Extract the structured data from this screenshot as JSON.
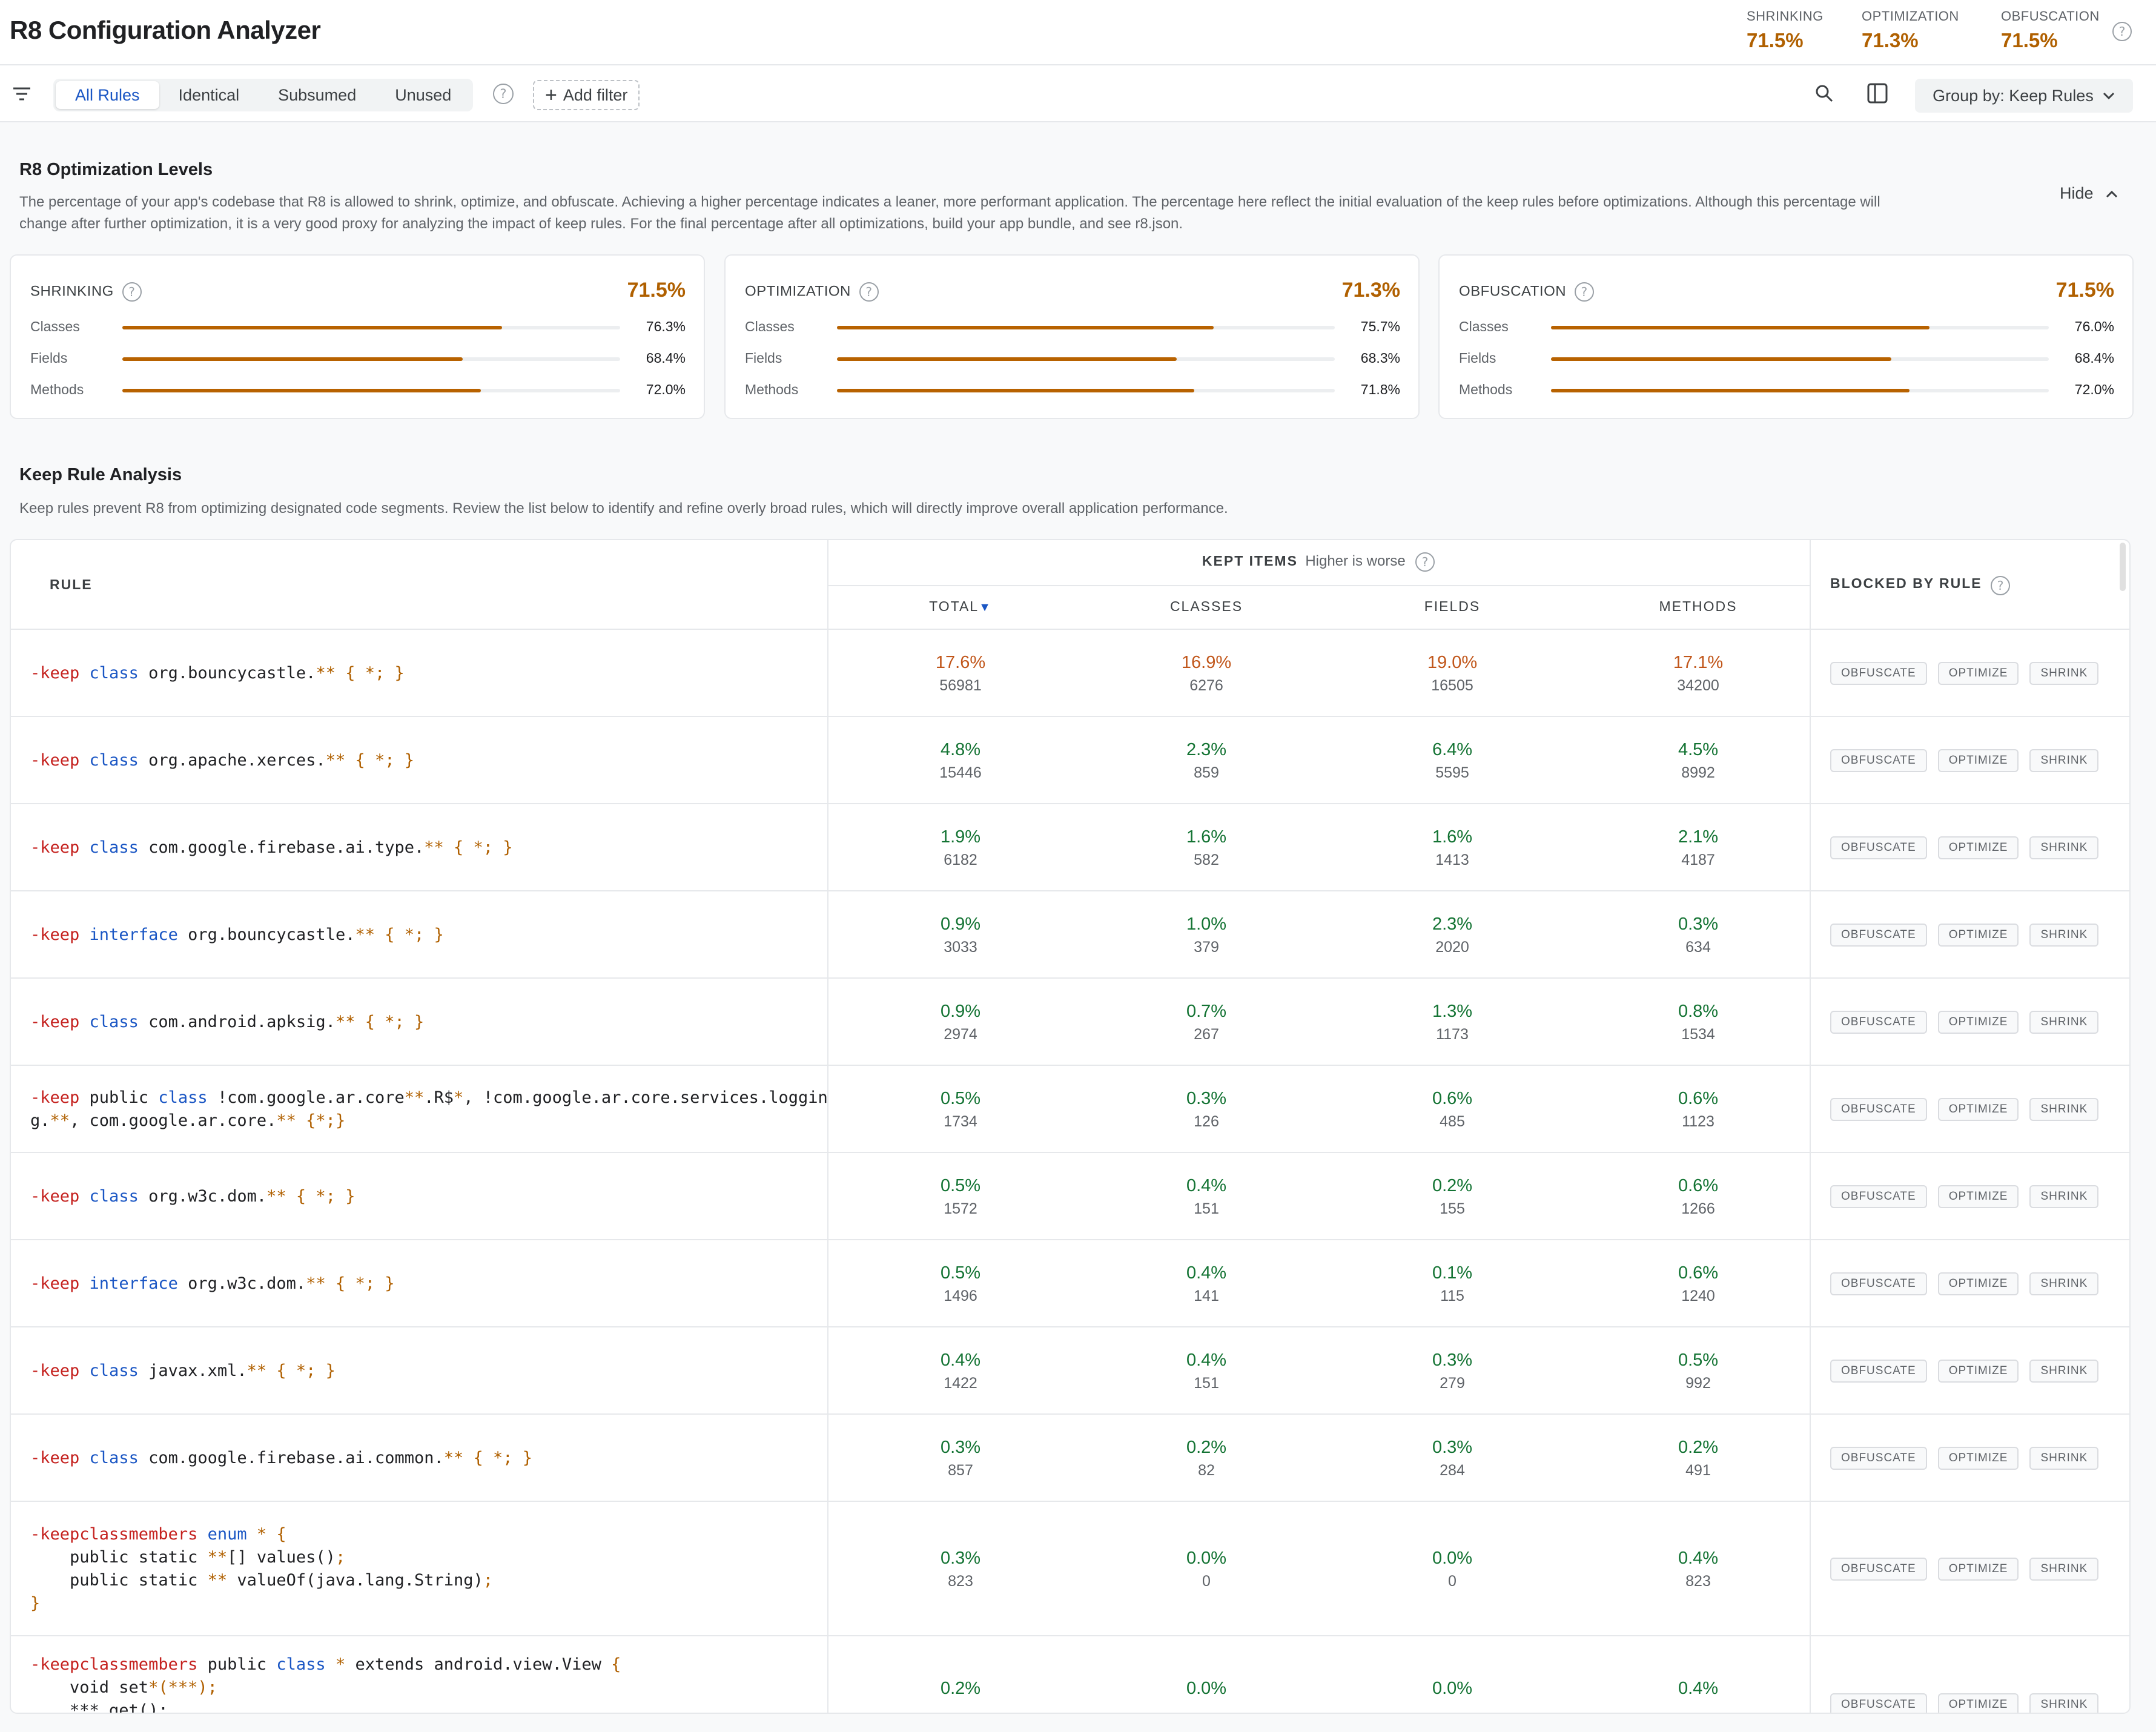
{
  "header": {
    "title": "R8 Configuration Analyzer",
    "metrics": [
      {
        "label": "SHRINKING",
        "value": "71.5%"
      },
      {
        "label": "OPTIMIZATION",
        "value": "71.3%"
      },
      {
        "label": "OBFUSCATION",
        "value": "71.5%"
      }
    ]
  },
  "toolbar": {
    "tabs": [
      "All Rules",
      "Identical",
      "Subsumed",
      "Unused"
    ],
    "active_tab": "All Rules",
    "add_filter_label": "Add filter",
    "group_by_label": "Group by: Keep Rules"
  },
  "levels": {
    "title": "R8 Optimization Levels",
    "description_line1": "The percentage of your app's codebase that R8 is allowed to shrink, optimize, and obfuscate. Achieving a higher percentage indicates a leaner, more performant application. The percentage here reflect the initial evaluation of the keep rules before optimizations. Although this percentage will",
    "description_line2": "change after further optimization, it is a very good proxy for analyzing the impact of keep rules. For the final percentage after all optimizations, build your app bundle, and see r8.json.",
    "hide_label": "Hide",
    "cards": [
      {
        "title": "SHRINKING",
        "value": "71.5%",
        "rows": [
          {
            "label": "Classes",
            "value": "76.3%",
            "level": 0.763
          },
          {
            "label": "Fields",
            "value": "68.4%",
            "level": 0.684
          },
          {
            "label": "Methods",
            "value": "72.0%",
            "level": 0.72
          }
        ]
      },
      {
        "title": "OPTIMIZATION",
        "value": "71.3%",
        "rows": [
          {
            "label": "Classes",
            "value": "75.7%",
            "level": 0.757
          },
          {
            "label": "Fields",
            "value": "68.3%",
            "level": 0.683
          },
          {
            "label": "Methods",
            "value": "71.8%",
            "level": 0.718
          }
        ]
      },
      {
        "title": "OBFUSCATION",
        "value": "71.5%",
        "rows": [
          {
            "label": "Classes",
            "value": "76.0%",
            "level": 0.76
          },
          {
            "label": "Fields",
            "value": "68.4%",
            "level": 0.684
          },
          {
            "label": "Methods",
            "value": "72.0%",
            "level": 0.72
          }
        ]
      }
    ]
  },
  "analysis": {
    "title": "Keep Rule Analysis",
    "description": "Keep rules prevent R8 from optimizing designated code segments. Review the list below to identify and refine overly broad rules, which will directly improve overall application performance.",
    "headers": {
      "rule": "RULE",
      "kept_items": "KEPT ITEMS",
      "kept_hint": "Higher is worse",
      "total": "TOTAL",
      "sort_indicator": "▼",
      "classes": "CLASSES",
      "fields": "FIELDS",
      "methods": "METHODS",
      "blocked": "BLOCKED BY RULE"
    },
    "chips": [
      "OBFUSCATE",
      "OPTIMIZE",
      "SHRINK"
    ],
    "rows": [
      {
        "rule_lines": [
          [
            [
              "-keep",
              "kw"
            ],
            [
              " ",
              ""
            ],
            [
              "class",
              "ty"
            ],
            [
              " org.bouncycastle.",
              ""
            ],
            [
              "** { *; }",
              "or"
            ]
          ]
        ],
        "total": {
          "pct": "17.6%",
          "count": "56981"
        },
        "classes": {
          "pct": "16.9%",
          "count": "6276"
        },
        "fields": {
          "pct": "19.0%",
          "count": "16505"
        },
        "methods": {
          "pct": "17.1%",
          "count": "34200"
        },
        "severity": "high"
      },
      {
        "rule_lines": [
          [
            [
              "-keep",
              "kw"
            ],
            [
              " ",
              ""
            ],
            [
              "class",
              "ty"
            ],
            [
              " org.apache.xerces.",
              ""
            ],
            [
              "** { *; }",
              "or"
            ]
          ]
        ],
        "total": {
          "pct": "4.8%",
          "count": "15446"
        },
        "classes": {
          "pct": "2.3%",
          "count": "859"
        },
        "fields": {
          "pct": "6.4%",
          "count": "5595"
        },
        "methods": {
          "pct": "4.5%",
          "count": "8992"
        },
        "severity": "low"
      },
      {
        "rule_lines": [
          [
            [
              "-keep",
              "kw"
            ],
            [
              " ",
              ""
            ],
            [
              "class",
              "ty"
            ],
            [
              " com.google.firebase.ai.type.",
              ""
            ],
            [
              "** { *; }",
              "or"
            ]
          ]
        ],
        "total": {
          "pct": "1.9%",
          "count": "6182"
        },
        "classes": {
          "pct": "1.6%",
          "count": "582"
        },
        "fields": {
          "pct": "1.6%",
          "count": "1413"
        },
        "methods": {
          "pct": "2.1%",
          "count": "4187"
        },
        "severity": "low"
      },
      {
        "rule_lines": [
          [
            [
              "-keep",
              "kw"
            ],
            [
              " ",
              ""
            ],
            [
              "interface",
              "ty"
            ],
            [
              " org.bouncycastle.",
              ""
            ],
            [
              "** { *; }",
              "or"
            ]
          ]
        ],
        "total": {
          "pct": "0.9%",
          "count": "3033"
        },
        "classes": {
          "pct": "1.0%",
          "count": "379"
        },
        "fields": {
          "pct": "2.3%",
          "count": "2020"
        },
        "methods": {
          "pct": "0.3%",
          "count": "634"
        },
        "severity": "low"
      },
      {
        "rule_lines": [
          [
            [
              "-keep",
              "kw"
            ],
            [
              " ",
              ""
            ],
            [
              "class",
              "ty"
            ],
            [
              " com.android.apksig.",
              ""
            ],
            [
              "** { *; }",
              "or"
            ]
          ]
        ],
        "total": {
          "pct": "0.9%",
          "count": "2974"
        },
        "classes": {
          "pct": "0.7%",
          "count": "267"
        },
        "fields": {
          "pct": "1.3%",
          "count": "1173"
        },
        "methods": {
          "pct": "0.8%",
          "count": "1534"
        },
        "severity": "low"
      },
      {
        "rule_lines": [
          [
            [
              "-keep",
              "kw"
            ],
            [
              " public ",
              ""
            ],
            [
              "class",
              "ty"
            ],
            [
              " !com.google.ar.core",
              ""
            ],
            [
              "**",
              "or"
            ],
            [
              ".R$",
              ""
            ],
            [
              "*",
              "or"
            ],
            [
              ", !com.google.ar.core.services.loggin",
              ""
            ]
          ],
          [
            [
              "g.",
              ""
            ],
            [
              "**",
              "or"
            ],
            [
              ", com.google.ar.core.",
              ""
            ],
            [
              "** {*;}",
              "or"
            ]
          ]
        ],
        "total": {
          "pct": "0.5%",
          "count": "1734"
        },
        "classes": {
          "pct": "0.3%",
          "count": "126"
        },
        "fields": {
          "pct": "0.6%",
          "count": "485"
        },
        "methods": {
          "pct": "0.6%",
          "count": "1123"
        },
        "severity": "low"
      },
      {
        "rule_lines": [
          [
            [
              "-keep",
              "kw"
            ],
            [
              " ",
              ""
            ],
            [
              "class",
              "ty"
            ],
            [
              " org.w3c.dom.",
              ""
            ],
            [
              "** { *; }",
              "or"
            ]
          ]
        ],
        "total": {
          "pct": "0.5%",
          "count": "1572"
        },
        "classes": {
          "pct": "0.4%",
          "count": "151"
        },
        "fields": {
          "pct": "0.2%",
          "count": "155"
        },
        "methods": {
          "pct": "0.6%",
          "count": "1266"
        },
        "severity": "low"
      },
      {
        "rule_lines": [
          [
            [
              "-keep",
              "kw"
            ],
            [
              " ",
              ""
            ],
            [
              "interface",
              "ty"
            ],
            [
              " org.w3c.dom.",
              ""
            ],
            [
              "** { *; }",
              "or"
            ]
          ]
        ],
        "total": {
          "pct": "0.5%",
          "count": "1496"
        },
        "classes": {
          "pct": "0.4%",
          "count": "141"
        },
        "fields": {
          "pct": "0.1%",
          "count": "115"
        },
        "methods": {
          "pct": "0.6%",
          "count": "1240"
        },
        "severity": "low"
      },
      {
        "rule_lines": [
          [
            [
              "-keep",
              "kw"
            ],
            [
              " ",
              ""
            ],
            [
              "class",
              "ty"
            ],
            [
              " javax.xml.",
              ""
            ],
            [
              "** { *; }",
              "or"
            ]
          ]
        ],
        "total": {
          "pct": "0.4%",
          "count": "1422"
        },
        "classes": {
          "pct": "0.4%",
          "count": "151"
        },
        "fields": {
          "pct": "0.3%",
          "count": "279"
        },
        "methods": {
          "pct": "0.5%",
          "count": "992"
        },
        "severity": "low"
      },
      {
        "rule_lines": [
          [
            [
              "-keep",
              "kw"
            ],
            [
              " ",
              ""
            ],
            [
              "class",
              "ty"
            ],
            [
              " com.google.firebase.ai.common.",
              ""
            ],
            [
              "** { *; }",
              "or"
            ]
          ]
        ],
        "total": {
          "pct": "0.3%",
          "count": "857"
        },
        "classes": {
          "pct": "0.2%",
          "count": "82"
        },
        "fields": {
          "pct": "0.3%",
          "count": "284"
        },
        "methods": {
          "pct": "0.2%",
          "count": "491"
        },
        "severity": "low"
      },
      {
        "rule_lines": [
          [
            [
              "-keepclassmembers",
              "kw"
            ],
            [
              " ",
              ""
            ],
            [
              "enum",
              "ty"
            ],
            [
              " ",
              ""
            ],
            [
              "* {",
              "or"
            ]
          ],
          [
            [
              "    public static ",
              ""
            ],
            [
              "**",
              "or"
            ],
            [
              "[] values()",
              ""
            ],
            [
              ";",
              "or"
            ]
          ],
          [
            [
              "    public static ",
              ""
            ],
            [
              "**",
              "or"
            ],
            [
              " valueOf(java.lang.String)",
              ""
            ],
            [
              ";",
              "or"
            ]
          ],
          [
            [
              "}",
              "or"
            ]
          ]
        ],
        "total": {
          "pct": "0.3%",
          "count": "823"
        },
        "classes": {
          "pct": "0.0%",
          "count": "0"
        },
        "fields": {
          "pct": "0.0%",
          "count": "0"
        },
        "methods": {
          "pct": "0.4%",
          "count": "823"
        },
        "severity": "low"
      },
      {
        "rule_lines": [
          [
            [
              "-keepclassmembers",
              "kw"
            ],
            [
              " public ",
              ""
            ],
            [
              "class",
              "ty"
            ],
            [
              " ",
              ""
            ],
            [
              "*",
              "or"
            ],
            [
              " extends android.view.View ",
              ""
            ],
            [
              "{",
              "or"
            ]
          ],
          [
            [
              "    void set",
              ""
            ],
            [
              "*(***)",
              "or"
            ],
            [
              ";",
              "or"
            ]
          ],
          [
            [
              "    *** get();",
              ""
            ]
          ]
        ],
        "total": {
          "pct": "0.2%",
          "count": ""
        },
        "classes": {
          "pct": "0.0%",
          "count": ""
        },
        "fields": {
          "pct": "0.0%",
          "count": ""
        },
        "methods": {
          "pct": "0.4%",
          "count": ""
        },
        "severity": "low"
      }
    ]
  },
  "colors": {
    "accent": "#1a56c4",
    "warning": "#b06000",
    "high": "#c1561a",
    "low": "#137333"
  },
  "icons": [
    "filter-icon",
    "help-icon",
    "plus-icon",
    "search-icon",
    "panel-icon",
    "chevron-down-icon",
    "chevron-up-icon",
    "sort-down-icon"
  ]
}
